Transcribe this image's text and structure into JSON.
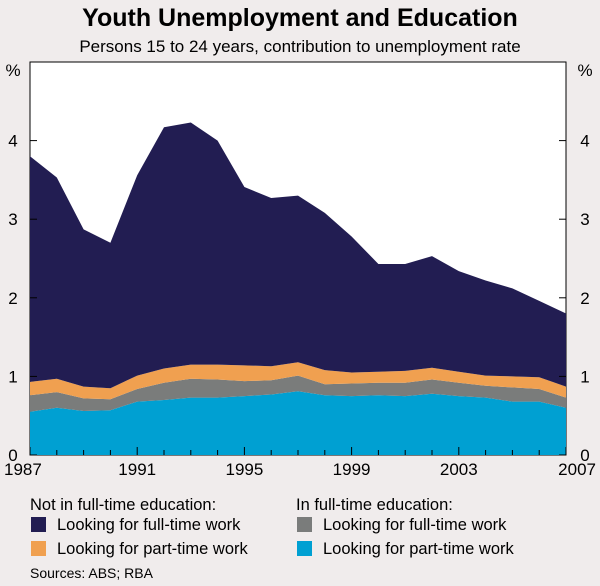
{
  "chart_data": {
    "type": "area",
    "title": "Youth Unemployment and Education",
    "subtitle": "Persons 15 to 24 years, contribution to unemployment rate",
    "y_unit_left": "%",
    "y_unit_right": "%",
    "ylim": [
      0,
      5
    ],
    "yticks": [
      0,
      1,
      2,
      3,
      4
    ],
    "xlim": [
      1987,
      2007
    ],
    "xticks": [
      1987,
      1991,
      1995,
      1999,
      2003,
      2007
    ],
    "grid": false,
    "x": [
      1987,
      1988,
      1989,
      1990,
      1991,
      1992,
      1993,
      1994,
      1995,
      1996,
      1997,
      1998,
      1999,
      2000,
      2001,
      2002,
      2003,
      2004,
      2005,
      2006,
      2007
    ],
    "stacked": true,
    "series": [
      {
        "name": "Looking for part-time work",
        "group": "In full-time education:",
        "color": "#00a0d2",
        "values": [
          0.55,
          0.6,
          0.56,
          0.57,
          0.68,
          0.7,
          0.73,
          0.73,
          0.75,
          0.77,
          0.81,
          0.76,
          0.75,
          0.76,
          0.75,
          0.78,
          0.75,
          0.73,
          0.68,
          0.68,
          0.6
        ]
      },
      {
        "name": "Looking for full-time work",
        "group": "In full-time education:",
        "color": "#7a7c7b",
        "values": [
          0.21,
          0.2,
          0.16,
          0.14,
          0.16,
          0.22,
          0.24,
          0.23,
          0.19,
          0.18,
          0.2,
          0.14,
          0.16,
          0.16,
          0.17,
          0.18,
          0.17,
          0.15,
          0.18,
          0.16,
          0.13
        ]
      },
      {
        "name": "Looking for part-time work",
        "group": "Not in full-time education:",
        "color": "#f0a050",
        "values": [
          0.17,
          0.17,
          0.15,
          0.14,
          0.17,
          0.18,
          0.18,
          0.19,
          0.2,
          0.18,
          0.17,
          0.18,
          0.14,
          0.14,
          0.15,
          0.15,
          0.14,
          0.13,
          0.14,
          0.15,
          0.14
        ]
      },
      {
        "name": "Looking for full-time work",
        "group": "Not in full-time education:",
        "color": "#221d52",
        "values": [
          2.87,
          2.56,
          2.0,
          1.85,
          2.55,
          3.07,
          3.08,
          2.85,
          2.27,
          2.14,
          2.12,
          2.0,
          1.73,
          1.37,
          1.36,
          1.42,
          1.28,
          1.21,
          1.12,
          0.97,
          0.93
        ]
      }
    ],
    "legend": {
      "placement": "bottom",
      "groups": [
        {
          "heading": "Not in full-time education:",
          "items": [
            {
              "label": "Looking for full-time work",
              "color": "#221d52"
            },
            {
              "label": "Looking for part-time work",
              "color": "#f0a050"
            }
          ]
        },
        {
          "heading": "In full-time education:",
          "items": [
            {
              "label": "Looking for full-time work",
              "color": "#7a7c7b"
            },
            {
              "label": "Looking for part-time work",
              "color": "#00a0d2"
            }
          ]
        }
      ]
    },
    "source": "Sources: ABS; RBA"
  }
}
